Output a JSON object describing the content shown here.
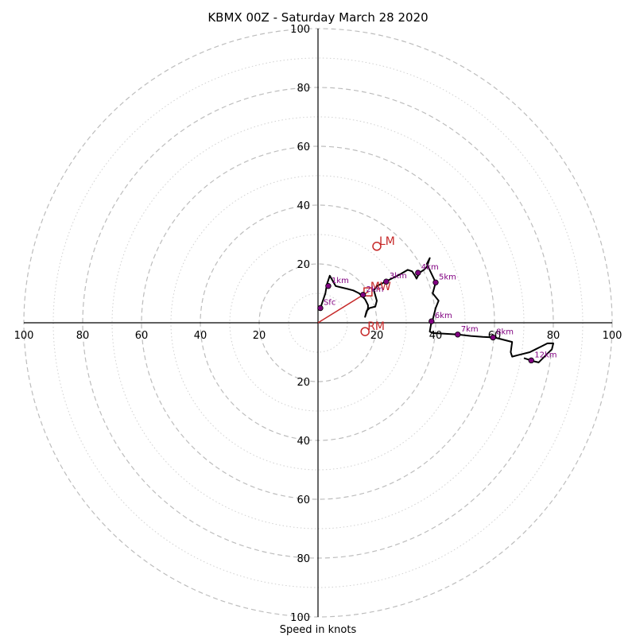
{
  "chart_data": {
    "type": "hodograph",
    "title": "KBMX 00Z - Saturday March 28 2020",
    "xlabel": "Speed in knots",
    "ring_labels": [
      "20",
      "40",
      "60",
      "80",
      "100"
    ],
    "xlim": [
      -100,
      100
    ],
    "ylim": [
      -100,
      100
    ],
    "rings_major": [
      20,
      40,
      60,
      80,
      100
    ],
    "rings_minor": [
      10,
      30,
      50,
      70,
      90
    ],
    "trace_u": [
      0.8,
      2.5,
      3.0,
      4.0,
      6.0,
      8.0,
      10.0,
      12.0,
      13.0,
      14.0,
      15.0,
      16.0,
      17.0,
      17.0,
      16.0,
      16.5,
      17.5,
      19.5,
      20.0,
      19.0,
      20.0,
      22.0,
      23.0,
      24.0,
      26.0,
      28.0,
      30.5,
      32.0,
      33.0,
      33.5,
      34.5,
      36.0,
      37.0,
      38.0,
      37.0,
      40.0,
      39.0,
      41.0,
      40.0,
      39.0,
      38.5,
      38.0,
      39.0,
      47.5,
      52.0,
      56.0,
      60.0,
      62.0,
      66.0,
      65.5,
      66.0,
      68.0,
      72.0,
      74.0,
      76.0,
      78.0,
      80.0,
      79.5,
      77.0,
      75.0,
      73.0,
      70.0
    ],
    "trace_v": [
      5.0,
      10.0,
      13.0,
      16.0,
      12.5,
      12.0,
      11.5,
      11.0,
      10.5,
      10.0,
      9.0,
      8.0,
      6.0,
      5.0,
      2.0,
      4.0,
      5.0,
      5.5,
      7.5,
      11.0,
      12.5,
      13.5,
      14.0,
      14.5,
      15.5,
      16.5,
      18.0,
      17.5,
      16.0,
      15.0,
      17.0,
      18.0,
      19.0,
      22.0,
      20.0,
      13.7,
      10.0,
      7.5,
      5.0,
      1.0,
      0.0,
      -3.0,
      -3.5,
      -4.0,
      -4.5,
      -4.8,
      -5.0,
      -5.5,
      -6.5,
      -10.0,
      -11.5,
      -11.0,
      -10.0,
      -9.0,
      -8.0,
      -7.0,
      -7.0,
      -9.0,
      -11.5,
      -13.5,
      -13.0,
      -12.0
    ],
    "height_labels": [
      {
        "label": "Sfc",
        "u": 0.8,
        "v": 5.0
      },
      {
        "label": "1km",
        "u": 3.5,
        "v": 12.5
      },
      {
        "label": "2km",
        "u": 15.3,
        "v": 9.5
      },
      {
        "label": "3km",
        "u": 23.2,
        "v": 14.0
      },
      {
        "label": "4km",
        "u": 34.0,
        "v": 17.0
      },
      {
        "label": "5km",
        "u": 40.0,
        "v": 13.7
      },
      {
        "label": "6km",
        "u": 38.6,
        "v": 0.5
      },
      {
        "label": "7km",
        "u": 47.5,
        "v": -4.0
      },
      {
        "label": "8km",
        "u": 59.5,
        "v": -5.0
      },
      {
        "label": "12km",
        "u": 72.5,
        "v": -12.8
      }
    ],
    "storm_motion": {
      "markers": [
        {
          "label": "LM",
          "u": 20.0,
          "v": 26.0
        },
        {
          "label": "MW",
          "u": 17.0,
          "v": 10.5
        },
        {
          "label": "RM",
          "u": 16.0,
          "v": -3.0
        }
      ],
      "vector": {
        "u": 17.0,
        "v": 10.5
      }
    },
    "colors": {
      "trace": "#000000",
      "heights": "#800080",
      "storm": "#c62828"
    }
  }
}
